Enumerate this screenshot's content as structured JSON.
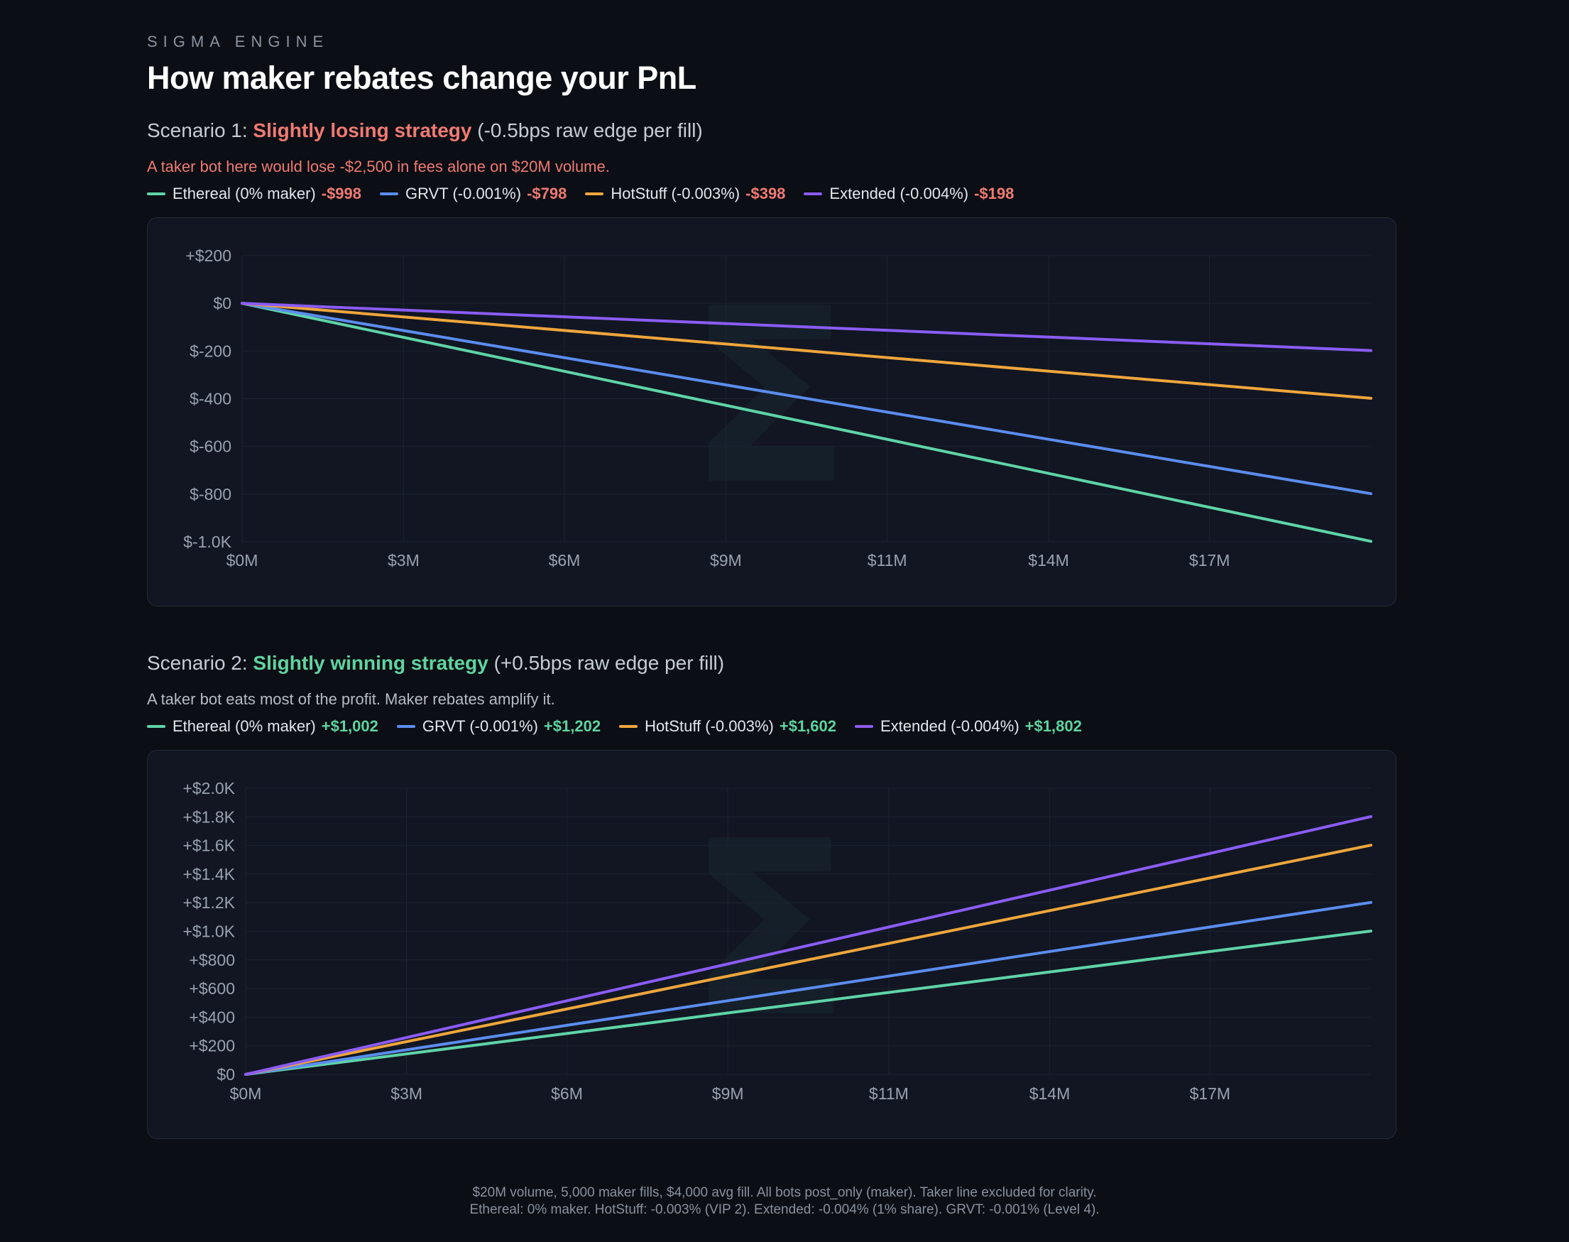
{
  "brand": "SIGMA ENGINE",
  "title": "How maker rebates change your PnL",
  "scenarios": [
    {
      "prefix": "Scenario 1:",
      "highlight": "Slightly losing strategy",
      "suffix": "(-0.5bps raw edge per fill)",
      "note": "A taker bot here would lose -$2,500 in fees alone on $20M volume.",
      "legend": [
        {
          "label": "Ethereal (0% maker)",
          "value": "-$998"
        },
        {
          "label": "GRVT (-0.001%)",
          "value": "-$798"
        },
        {
          "label": "HotStuff (-0.003%)",
          "value": "-$398"
        },
        {
          "label": "Extended (-0.004%)",
          "value": "-$198"
        }
      ]
    },
    {
      "prefix": "Scenario 2:",
      "highlight": "Slightly winning strategy",
      "suffix": "(+0.5bps raw edge per fill)",
      "note": "A taker bot eats most of the profit. Maker rebates amplify it.",
      "legend": [
        {
          "label": "Ethereal (0% maker)",
          "value": "+$1,002"
        },
        {
          "label": "GRVT (-0.001%)",
          "value": "+$1,202"
        },
        {
          "label": "HotStuff (-0.003%)",
          "value": "+$1,602"
        },
        {
          "label": "Extended (-0.004%)",
          "value": "+$1,802"
        }
      ]
    }
  ],
  "colors": {
    "ethereal": "#5fd4a8",
    "grvt": "#5b8def",
    "hotstuff": "#f0a63c",
    "extended": "#8b5cf6"
  },
  "chart_data": [
    {
      "type": "line",
      "x_unit": "volume ($M)",
      "x_ticks": [
        "$0M",
        "$3M",
        "$6M",
        "$9M",
        "$11M",
        "$14M",
        "$17M"
      ],
      "x_tick_values": [
        0,
        2.86,
        5.71,
        8.57,
        11.43,
        14.29,
        17.14
      ],
      "xlim": [
        0,
        20
      ],
      "y_ticks": [
        "+$200",
        "$0",
        "$-200",
        "$-400",
        "$-600",
        "$-800",
        "$-1.0K"
      ],
      "y_tick_values": [
        200,
        0,
        -200,
        -400,
        -600,
        -800,
        -1000
      ],
      "ylim": [
        -1000,
        200
      ],
      "grid": true,
      "series": [
        {
          "name": "Ethereal (0% maker)",
          "color_key": "ethereal",
          "x": [
            0,
            20
          ],
          "y": [
            0,
            -998
          ]
        },
        {
          "name": "GRVT (-0.001%)",
          "color_key": "grvt",
          "x": [
            0,
            20
          ],
          "y": [
            0,
            -798
          ]
        },
        {
          "name": "HotStuff (-0.003%)",
          "color_key": "hotstuff",
          "x": [
            0,
            20
          ],
          "y": [
            0,
            -398
          ]
        },
        {
          "name": "Extended (-0.004%)",
          "color_key": "extended",
          "x": [
            0,
            20
          ],
          "y": [
            0,
            -198
          ]
        }
      ]
    },
    {
      "type": "line",
      "x_unit": "volume ($M)",
      "x_ticks": [
        "$0M",
        "$3M",
        "$6M",
        "$9M",
        "$11M",
        "$14M",
        "$17M"
      ],
      "x_tick_values": [
        0,
        2.86,
        5.71,
        8.57,
        11.43,
        14.29,
        17.14
      ],
      "xlim": [
        0,
        20
      ],
      "y_ticks": [
        "+$2.0K",
        "+$1.8K",
        "+$1.6K",
        "+$1.4K",
        "+$1.2K",
        "+$1.0K",
        "+$800",
        "+$600",
        "+$400",
        "+$200",
        "$0"
      ],
      "y_tick_values": [
        2000,
        1800,
        1600,
        1400,
        1200,
        1000,
        800,
        600,
        400,
        200,
        0
      ],
      "ylim": [
        0,
        2000
      ],
      "grid": true,
      "series": [
        {
          "name": "Ethereal (0% maker)",
          "color_key": "ethereal",
          "x": [
            0,
            20
          ],
          "y": [
            0,
            1002
          ]
        },
        {
          "name": "GRVT (-0.001%)",
          "color_key": "grvt",
          "x": [
            0,
            20
          ],
          "y": [
            0,
            1202
          ]
        },
        {
          "name": "HotStuff (-0.003%)",
          "color_key": "hotstuff",
          "x": [
            0,
            20
          ],
          "y": [
            0,
            1602
          ]
        },
        {
          "name": "Extended (-0.004%)",
          "color_key": "extended",
          "x": [
            0,
            20
          ],
          "y": [
            0,
            1802
          ]
        }
      ]
    }
  ],
  "footer": {
    "line1": "$20M volume, 5,000 maker fills, $4,000 avg fill. All bots post_only (maker). Taker line excluded for clarity.",
    "line2": "Ethereal: 0% maker. HotStuff: -0.003% (VIP 2). Extended: -0.004% (1% share). GRVT: -0.001% (Level 4)."
  }
}
